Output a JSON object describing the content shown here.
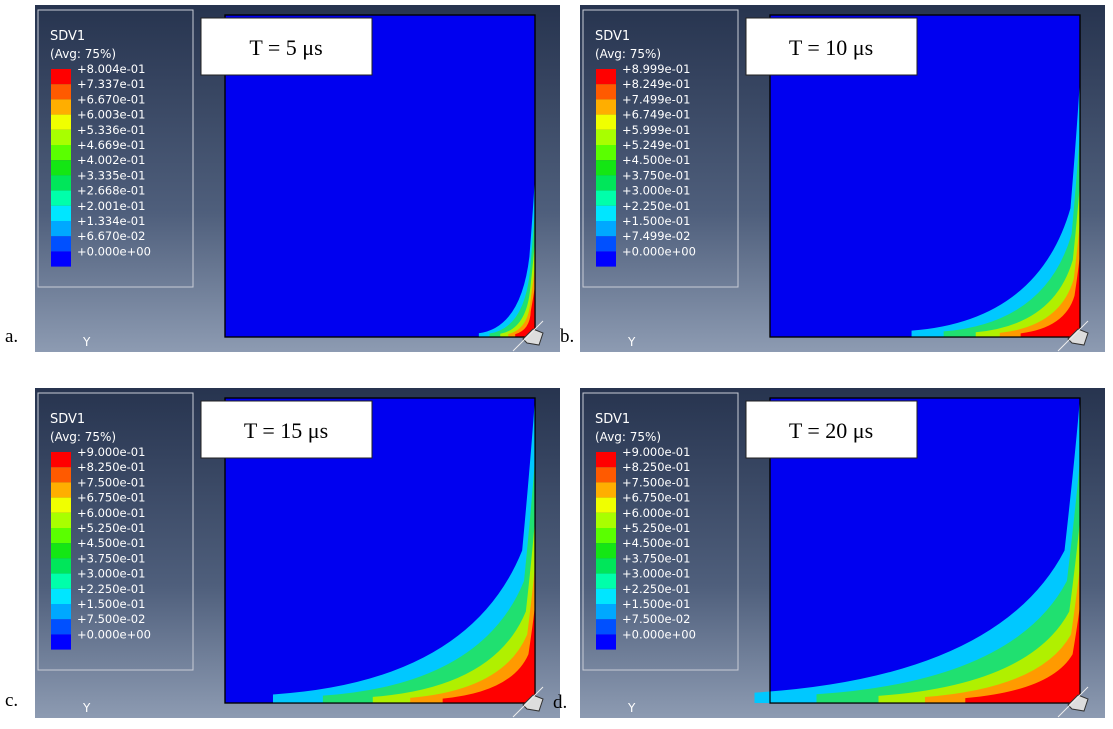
{
  "panels": [
    {
      "letter": "a.",
      "time": "T = 5 μs",
      "axis": "Y",
      "legend": {
        "title": "SDV1",
        "subtitle": "(Avg: 75%)",
        "labels": [
          "+8.004e-01",
          "+7.337e-01",
          "+6.670e-01",
          "+6.003e-01",
          "+5.336e-01",
          "+4.669e-01",
          "+4.002e-01",
          "+3.335e-01",
          "+2.668e-01",
          "+2.001e-01",
          "+1.334e-01",
          "+6.670e-02",
          "+0.000e+00"
        ]
      }
    },
    {
      "letter": "b.",
      "time": "T = 10 μs",
      "axis": "Y",
      "legend": {
        "title": "SDV1",
        "subtitle": "(Avg: 75%)",
        "labels": [
          "+8.999e-01",
          "+8.249e-01",
          "+7.499e-01",
          "+6.749e-01",
          "+5.999e-01",
          "+5.249e-01",
          "+4.500e-01",
          "+3.750e-01",
          "+3.000e-01",
          "+2.250e-01",
          "+1.500e-01",
          "+7.499e-02",
          "+0.000e+00"
        ]
      }
    },
    {
      "letter": "c.",
      "time": "T = 15 μs",
      "axis": "Y",
      "legend": {
        "title": "SDV1",
        "subtitle": "(Avg: 75%)",
        "labels": [
          "+9.000e-01",
          "+8.250e-01",
          "+7.500e-01",
          "+6.750e-01",
          "+6.000e-01",
          "+5.250e-01",
          "+4.500e-01",
          "+3.750e-01",
          "+3.000e-01",
          "+2.250e-01",
          "+1.500e-01",
          "+7.500e-02",
          "+0.000e+00"
        ]
      }
    },
    {
      "letter": "d.",
      "time": "T = 20 μs",
      "axis": "Y",
      "legend": {
        "title": "SDV1",
        "subtitle": "(Avg: 75%)",
        "labels": [
          "+9.000e-01",
          "+8.250e-01",
          "+7.500e-01",
          "+6.750e-01",
          "+6.000e-01",
          "+5.250e-01",
          "+4.500e-01",
          "+3.750e-01",
          "+3.000e-01",
          "+2.250e-01",
          "+1.500e-01",
          "+7.500e-02",
          "+0.000e+00"
        ]
      }
    }
  ]
}
